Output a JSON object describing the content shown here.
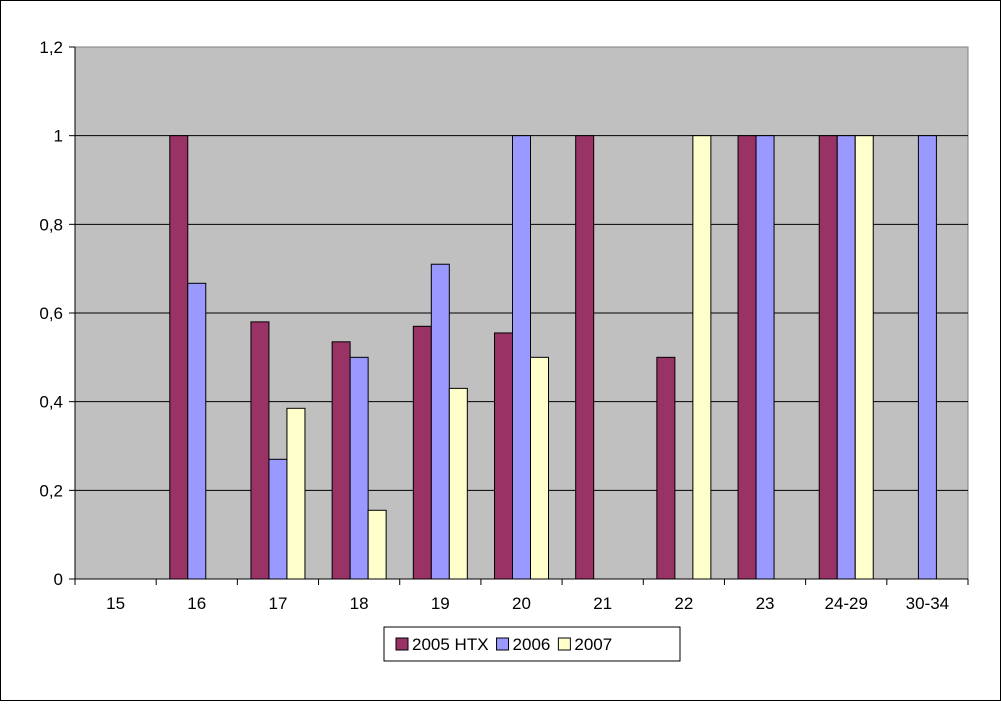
{
  "chart_data": {
    "type": "bar",
    "categories": [
      "15",
      "16",
      "17",
      "18",
      "19",
      "20",
      "21",
      "22",
      "23",
      "24-29",
      "30-34"
    ],
    "series": [
      {
        "name": "2005 HTX",
        "color": "#993366",
        "values": [
          0,
          1,
          0.58,
          0.535,
          0.57,
          0.555,
          1,
          0.5,
          1,
          1,
          0
        ]
      },
      {
        "name": "2006",
        "color": "#9999ff",
        "values": [
          0,
          0.667,
          0.27,
          0.5,
          0.71,
          1,
          0,
          0,
          1,
          1,
          1
        ]
      },
      {
        "name": "2007",
        "color": "#ffffcc",
        "values": [
          0,
          0,
          0.385,
          0.155,
          0.43,
          0.5,
          0,
          1,
          0,
          1,
          0
        ]
      }
    ],
    "y_ticks": [
      "0",
      "0,2",
      "0,4",
      "0,6",
      "0,8",
      "1",
      "1,2"
    ],
    "ylim": [
      0,
      1.2
    ],
    "grid": true,
    "plot_background": "#c0c0c0",
    "legend_position": "bottom"
  }
}
